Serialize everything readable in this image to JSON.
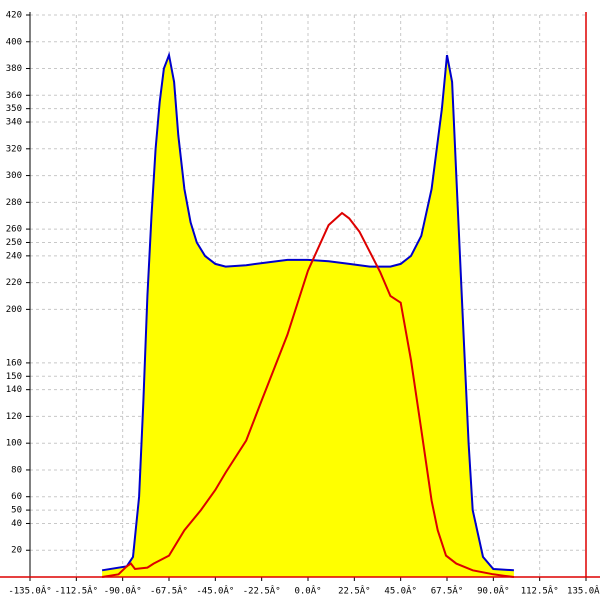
{
  "chart_data": {
    "type": "line",
    "xlim": [
      -135,
      135
    ],
    "ylim": [
      0,
      420
    ],
    "xticks": [
      {
        "value": -135,
        "label": "-135.0Â°"
      },
      {
        "value": -112.5,
        "label": "-112.5Â°"
      },
      {
        "value": -90,
        "label": "-90.0Â°"
      },
      {
        "value": -67.5,
        "label": "-67.5Â°"
      },
      {
        "value": -45,
        "label": "-45.0Â°"
      },
      {
        "value": -22.5,
        "label": "-22.5Â°"
      },
      {
        "value": 0,
        "label": "0.0Â°"
      },
      {
        "value": 22.5,
        "label": "22.5Â°"
      },
      {
        "value": 45,
        "label": "45.0Â°"
      },
      {
        "value": 67.5,
        "label": "67.5Â°"
      },
      {
        "value": 90,
        "label": "90.0Â°"
      },
      {
        "value": 112.5,
        "label": "112.5Â°"
      },
      {
        "value": 135,
        "label": "135.0Â°"
      }
    ],
    "yticks": [
      20,
      40,
      50,
      60,
      80,
      100,
      120,
      140,
      150,
      160,
      200,
      220,
      240,
      250,
      260,
      280,
      300,
      320,
      340,
      350,
      360,
      380,
      400,
      420
    ],
    "grid": true,
    "series": [
      {
        "color": "#0000cc",
        "fill": "#ffff00",
        "x": [
          -100,
          -88,
          -85,
          -82,
          -80,
          -78,
          -76,
          -74,
          -72,
          -70,
          -67.5,
          -65,
          -63,
          -60,
          -57,
          -54,
          -50,
          -45,
          -40,
          -30,
          -20,
          -10,
          0,
          10,
          20,
          30,
          40,
          45,
          50,
          55,
          60,
          65,
          67.5,
          70,
          72,
          75,
          78,
          80,
          85,
          90,
          100
        ],
        "values": [
          5,
          8,
          15,
          60,
          130,
          210,
          270,
          320,
          355,
          380,
          390,
          370,
          330,
          290,
          265,
          250,
          240,
          234,
          232,
          233,
          235,
          237,
          237,
          236,
          234,
          232,
          232,
          234,
          240,
          255,
          290,
          350,
          390,
          370,
          300,
          200,
          100,
          50,
          15,
          6,
          5
        ]
      },
      {
        "color": "#dd0000",
        "x": [
          -100,
          -92,
          -88,
          -86,
          -84,
          -78,
          -75,
          -67.5,
          -60,
          -52,
          -45,
          -40,
          -30,
          -22.5,
          -10,
          0,
          10,
          16.5,
          20,
          25,
          30,
          35,
          40,
          45,
          50,
          55,
          60,
          63,
          67,
          72,
          80,
          90,
          95,
          100
        ],
        "values": [
          0,
          2,
          8,
          10,
          6,
          7,
          10,
          16,
          35,
          50,
          65,
          78,
          102,
          132,
          181,
          229,
          263,
          272,
          268,
          258,
          243,
          228,
          210,
          205,
          162,
          110,
          57,
          35,
          16,
          10,
          5,
          2,
          1,
          0
        ]
      }
    ]
  }
}
